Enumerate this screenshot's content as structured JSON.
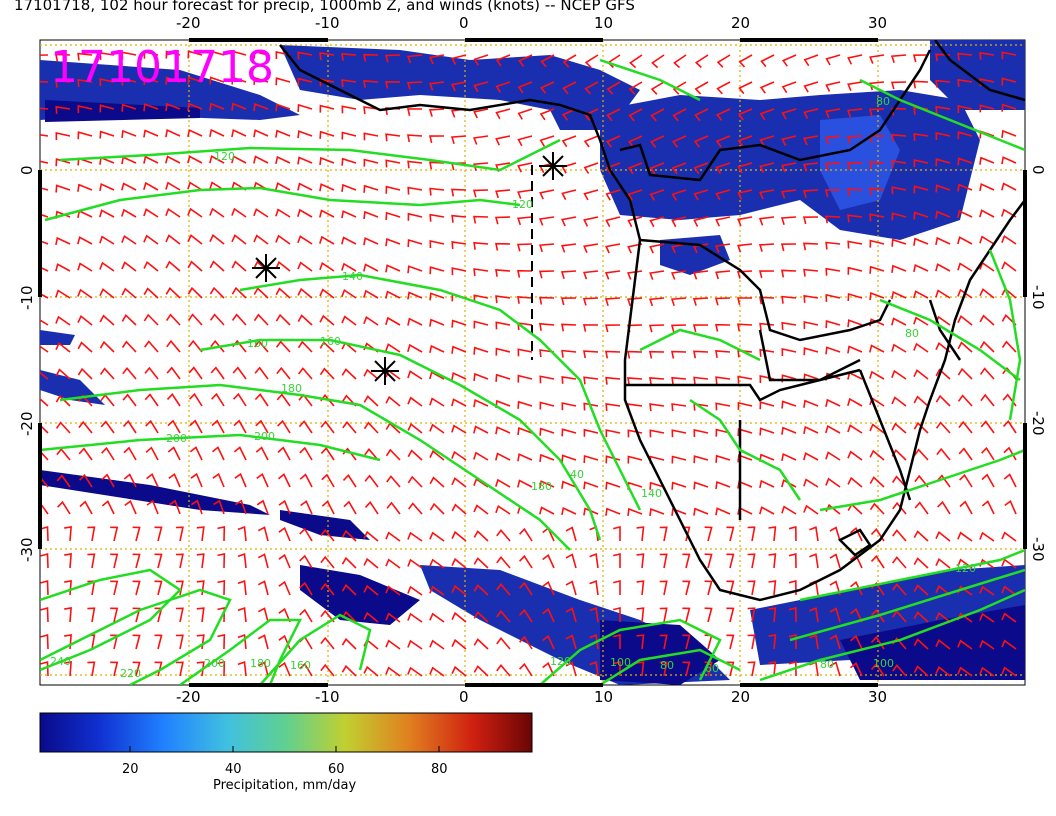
{
  "title": "17101718, 102 hour forecast for precip, 1000mb Z, and winds (knots) -- NCEP GFS",
  "stamp": "17101718",
  "axes": {
    "lon_ticks": [
      "-20",
      "-10",
      "0",
      "10",
      "20",
      "30"
    ],
    "lat_ticks": [
      "0",
      "-10",
      "-20",
      "-30"
    ]
  },
  "contour_labels": [
    "120",
    "120",
    "140",
    "160",
    "160",
    "180",
    "200",
    "200",
    "180",
    "240",
    "220",
    "200",
    "180",
    "160",
    "120",
    "100",
    "80",
    "60",
    "40",
    "80",
    "100",
    "120",
    "140",
    "80",
    "80"
  ],
  "colorbar": {
    "title": "Precipitation, mm/day",
    "ticks": [
      "20",
      "40",
      "60",
      "80"
    ],
    "colors": [
      "#0a0a8a",
      "#1030d0",
      "#2080ff",
      "#40c0e0",
      "#50d0a0",
      "#a0d040",
      "#e0d020",
      "#e08020",
      "#d02010",
      "#7a0505"
    ]
  },
  "colors": {
    "wind_barbs": "#ff1010",
    "contours": "#22dd22",
    "coastline": "#000000",
    "grid": "#e0b000",
    "stamp": "#ff00ff"
  },
  "map": {
    "lon_range": [
      -30,
      40
    ],
    "lat_range": [
      -40,
      10
    ],
    "symbols": [
      "asterisk",
      "asterisk",
      "asterisk"
    ]
  }
}
